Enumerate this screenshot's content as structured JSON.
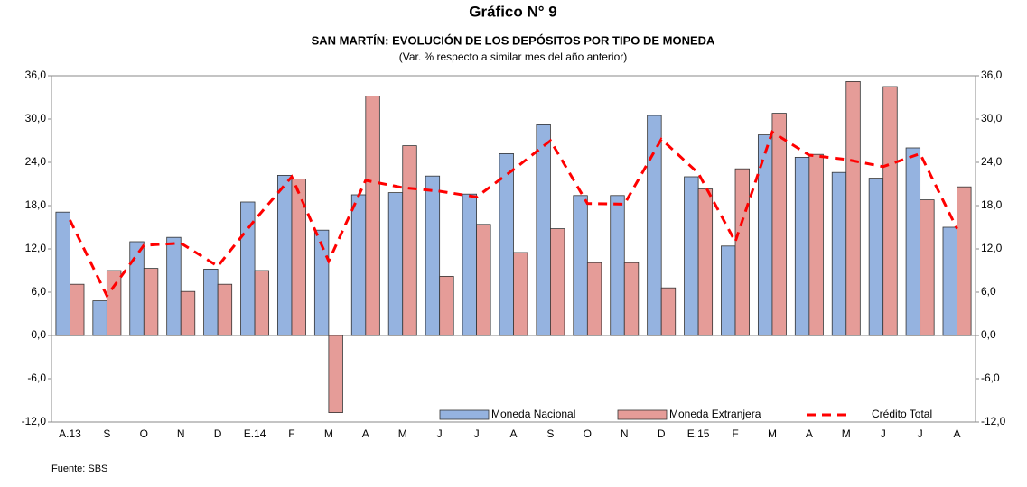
{
  "chart_data": {
    "type": "bar",
    "title": "Gráfico N° 9",
    "subtitle": "SAN MARTÍN: EVOLUCIÓN DE LOS DEPÓSITOS POR TIPO DE MONEDA",
    "note": "(Var. % respecto a similar mes del año anterior)",
    "source": "Fuente: SBS",
    "categories": [
      "A.13",
      "S",
      "O",
      "N",
      "D",
      "E.14",
      "F",
      "M",
      "A",
      "M",
      "J",
      "J",
      "A",
      "S",
      "O",
      "N",
      "D",
      "E.15",
      "F",
      "M",
      "A",
      "M",
      "J",
      "J",
      "A"
    ],
    "series": [
      {
        "name": "Moneda Nacional",
        "type": "bar",
        "color": "#95b3e0",
        "values": [
          17.1,
          4.8,
          13.0,
          13.6,
          9.2,
          18.5,
          22.2,
          14.6,
          19.5,
          19.8,
          22.1,
          19.6,
          25.2,
          29.2,
          19.4,
          19.4,
          30.5,
          22.0,
          12.4,
          27.8,
          24.7,
          22.6,
          21.8,
          26.0,
          15.0
        ]
      },
      {
        "name": "Moneda Extranjera",
        "type": "bar",
        "color": "#e59c98",
        "values": [
          7.1,
          9.0,
          9.3,
          6.1,
          7.1,
          9.0,
          21.7,
          -10.7,
          33.2,
          26.3,
          8.2,
          15.4,
          11.5,
          14.8,
          10.1,
          10.1,
          6.6,
          20.3,
          23.1,
          30.8,
          25.1,
          35.2,
          34.5,
          18.8,
          20.6
        ]
      },
      {
        "name": "Crédito Total",
        "type": "line",
        "axis": "y2",
        "color": "#ff0000",
        "values": [
          16.0,
          5.5,
          12.5,
          12.8,
          9.6,
          16.0,
          22.0,
          10.3,
          21.5,
          20.5,
          20.0,
          19.2,
          23.0,
          27.0,
          18.3,
          18.2,
          27.2,
          22.5,
          13.0,
          28.2,
          25.0,
          24.4,
          23.4,
          25.2,
          14.8
        ]
      }
    ],
    "ylim": [
      -12,
      36
    ],
    "yticks": [
      {
        "value": -12,
        "label": "-12,0"
      },
      {
        "value": -6,
        "label": "-6,0"
      },
      {
        "value": 0,
        "label": "0,0"
      },
      {
        "value": 6,
        "label": "6,0"
      },
      {
        "value": 12,
        "label": "12,0"
      },
      {
        "value": 18,
        "label": "18,0"
      },
      {
        "value": 24,
        "label": "24,0"
      },
      {
        "value": 30,
        "label": "30,0"
      },
      {
        "value": 36,
        "label": "36,0"
      }
    ],
    "y2lim": [
      -12,
      36
    ],
    "y2ticks": [
      {
        "value": -12,
        "label": "-12,0"
      },
      {
        "value": -6,
        "label": "-6,0"
      },
      {
        "value": 0,
        "label": "0,0"
      },
      {
        "value": 6,
        "label": "6,0"
      },
      {
        "value": 12,
        "label": "12,0"
      },
      {
        "value": 18,
        "label": "18,0"
      },
      {
        "value": 24,
        "label": "24,0"
      },
      {
        "value": 30,
        "label": "30,0"
      },
      {
        "value": 36,
        "label": "36,0"
      }
    ],
    "legend": "bottom-right"
  }
}
